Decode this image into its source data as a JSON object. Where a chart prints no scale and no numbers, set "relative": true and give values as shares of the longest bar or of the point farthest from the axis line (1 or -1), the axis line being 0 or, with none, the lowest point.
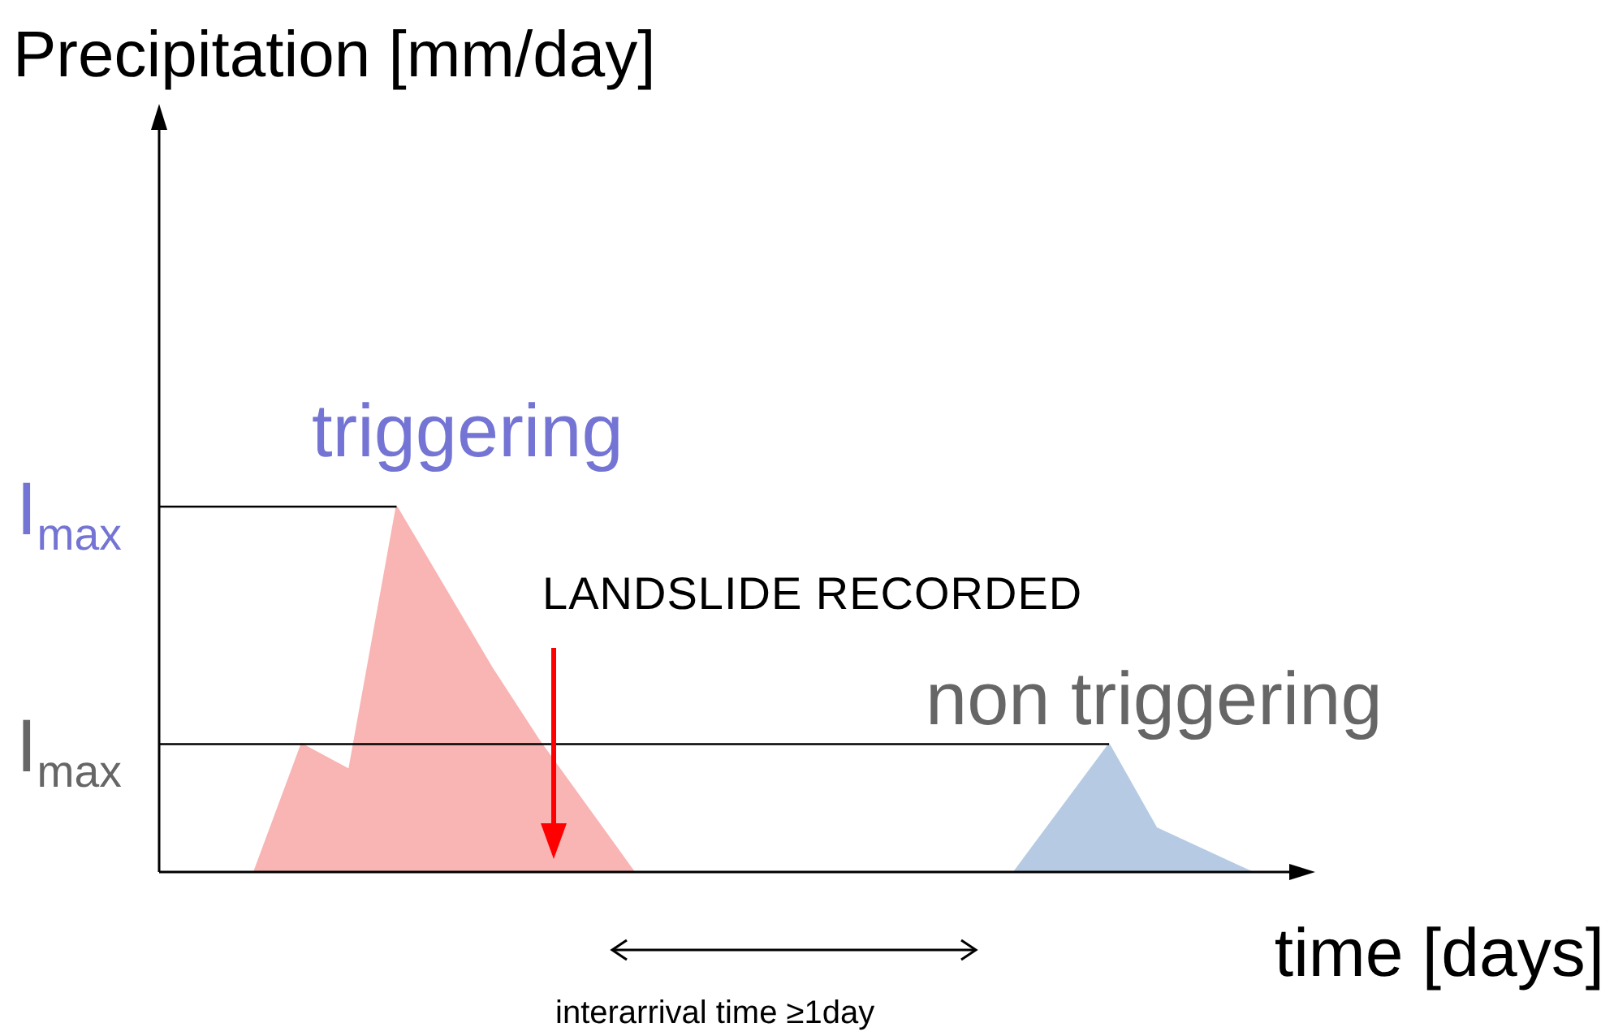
{
  "chart_data": {
    "type": "area",
    "relative": true,
    "xlabel": "time [days]",
    "categories": [
      null,
      null,
      null,
      null,
      null,
      null,
      null,
      null,
      null,
      null,
      null,
      null,
      null,
      null,
      null,
      null,
      null,
      null,
      null,
      null,
      null,
      null,
      null,
      null,
      null
    ],
    "series": [
      {
        "color": "#f9b4b4",
        "values": [
          null,
          null,
          0,
          0.35,
          0.28,
          1,
          null,
          0.56,
          0.36,
          null,
          0,
          null,
          null,
          null,
          null,
          null,
          null,
          null,
          null,
          null,
          null,
          null,
          null,
          null,
          null
        ]
      },
      {
        "color": "#b6cbe3",
        "values": [
          null,
          null,
          null,
          null,
          null,
          null,
          null,
          null,
          null,
          null,
          null,
          null,
          null,
          null,
          null,
          null,
          null,
          null,
          0,
          null,
          0.35,
          0.12,
          null,
          0,
          null
        ]
      }
    ],
    "ref_lines": [
      {
        "axis": "y",
        "value": 1,
        "label": "I$_{max}$"
      },
      {
        "axis": "y",
        "value": 0.35,
        "label": "I$_{max}$"
      }
    ],
    "annotations": [
      "Precipitation [mm/day]",
      "triggering",
      "non triggering",
      "LANDSLIDE RECORDED",
      "interarrival time ≥1day"
    ],
    "legend": false
  }
}
